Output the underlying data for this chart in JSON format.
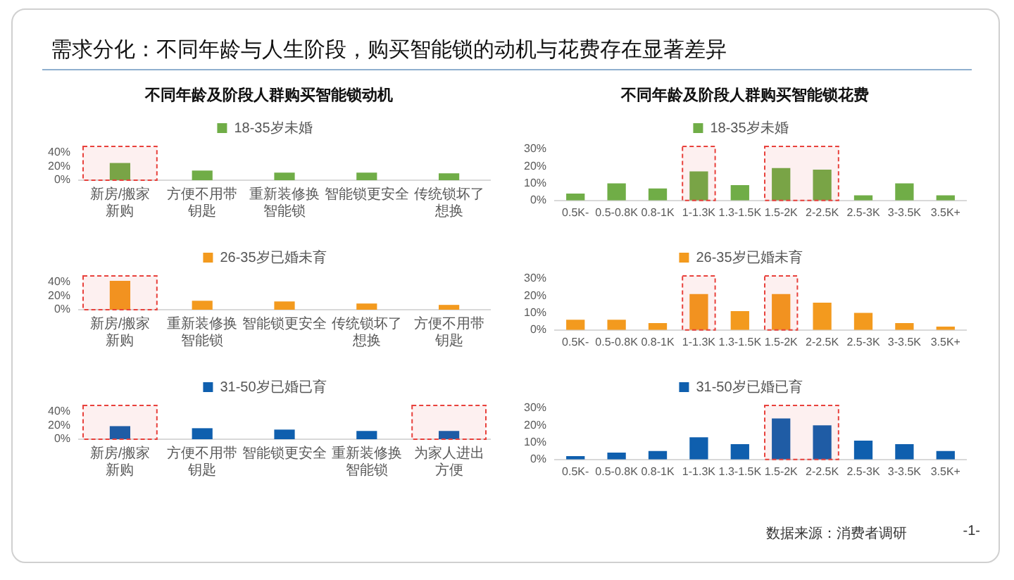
{
  "chart_data": [
    {
      "type": "bar",
      "title": "不同年龄及阶段人群购买智能锁动机",
      "annotations": [
        "需求分化：不同年龄与人生阶段，购买智能锁的动机与花费存在显著差异"
      ],
      "categories": [
        "新房/搬家新购",
        "方便不用带钥匙",
        "重新装修换智能锁",
        "智能锁更安全",
        "传统锁坏了想换"
      ],
      "series": [
        {
          "name": "18-35岁未婚",
          "color": "#70ad47",
          "values": [
            25,
            14,
            11,
            11,
            10
          ]
        }
      ],
      "ylim": [
        0,
        45
      ],
      "yticks": [
        {
          "value": 0,
          "label": "0%"
        },
        {
          "value": 20,
          "label": "20%"
        },
        {
          "value": 40,
          "label": "40%"
        }
      ],
      "legend": "top",
      "bands": [
        {
          "axis": "x",
          "from": "新房/搬家新购",
          "to": "新房/搬家新购",
          "color": "#e8413c"
        }
      ]
    },
    {
      "type": "bar",
      "categories": [
        "新房/搬家新购",
        "重新装修换智能锁",
        "智能锁更安全",
        "传统锁坏了想换",
        "方便不用带钥匙"
      ],
      "series": [
        {
          "name": "26-35岁已婚未育",
          "color": "#f39a1e",
          "values": [
            42,
            13,
            12,
            9,
            7
          ]
        }
      ],
      "ylim": [
        0,
        45
      ],
      "yticks": [
        {
          "value": 0,
          "label": "0%"
        },
        {
          "value": 20,
          "label": "20%"
        },
        {
          "value": 40,
          "label": "40%"
        }
      ],
      "legend": "top",
      "bands": [
        {
          "axis": "x",
          "from": "新房/搬家新购",
          "to": "新房/搬家新购",
          "color": "#e8413c"
        }
      ]
    },
    {
      "type": "bar",
      "categories": [
        "新房/搬家新购",
        "方便不用带钥匙",
        "智能锁更安全",
        "重新装修换智能锁",
        "为家人进出方便"
      ],
      "series": [
        {
          "name": "31-50岁已婚已育",
          "color": "#0f5fae",
          "values": [
            19,
            16,
            14,
            12,
            12
          ]
        }
      ],
      "ylim": [
        0,
        45
      ],
      "yticks": [
        {
          "value": 0,
          "label": "0%"
        },
        {
          "value": 20,
          "label": "20%"
        },
        {
          "value": 40,
          "label": "40%"
        }
      ],
      "legend": "top",
      "bands": [
        {
          "axis": "x",
          "from": "新房/搬家新购",
          "to": "新房/搬家新购",
          "color": "#e8413c"
        },
        {
          "axis": "x",
          "from": "为家人进出方便",
          "to": "为家人进出方便",
          "color": "#e8413c"
        }
      ]
    },
    {
      "type": "bar",
      "title": "不同年龄及阶段人群购买智能锁花费",
      "categories": [
        "0.5K-",
        "0.5-0.8K",
        "0.8-1K",
        "1-1.3K",
        "1.3-1.5K",
        "1.5-2K",
        "2-2.5K",
        "2.5-3K",
        "3-3.5K",
        "3.5K+"
      ],
      "series": [
        {
          "name": "18-35岁未婚",
          "color": "#70ad47",
          "values": [
            4,
            10,
            7,
            17,
            9,
            19,
            18,
            3,
            10,
            3
          ]
        }
      ],
      "ylim": [
        0,
        30
      ],
      "yticks": [
        {
          "value": 0,
          "label": "0%"
        },
        {
          "value": 10,
          "label": "10%"
        },
        {
          "value": 20,
          "label": "20%"
        },
        {
          "value": 30,
          "label": "30%"
        }
      ],
      "legend": "top",
      "bands": [
        {
          "axis": "x",
          "from": "1-1.3K",
          "to": "1-1.3K",
          "color": "#e8413c"
        },
        {
          "axis": "x",
          "from": "1.5-2K",
          "to": "2-2.5K",
          "color": "#e8413c"
        }
      ]
    },
    {
      "type": "bar",
      "categories": [
        "0.5K-",
        "0.5-0.8K",
        "0.8-1K",
        "1-1.3K",
        "1.3-1.5K",
        "1.5-2K",
        "2-2.5K",
        "2.5-3K",
        "3-3.5K",
        "3.5K+"
      ],
      "series": [
        {
          "name": "26-35岁已婚未育",
          "color": "#f39a1e",
          "values": [
            6,
            6,
            4,
            21,
            11,
            21,
            16,
            10,
            4,
            2
          ]
        }
      ],
      "ylim": [
        0,
        30
      ],
      "yticks": [
        {
          "value": 0,
          "label": "0%"
        },
        {
          "value": 10,
          "label": "10%"
        },
        {
          "value": 20,
          "label": "20%"
        },
        {
          "value": 30,
          "label": "30%"
        }
      ],
      "legend": "top",
      "bands": [
        {
          "axis": "x",
          "from": "1-1.3K",
          "to": "1-1.3K",
          "color": "#e8413c"
        },
        {
          "axis": "x",
          "from": "1.5-2K",
          "to": "1.5-2K",
          "color": "#e8413c"
        }
      ]
    },
    {
      "type": "bar",
      "annotations": [
        "数据来源：消费者调研",
        "-1-"
      ],
      "categories": [
        "0.5K-",
        "0.5-0.8K",
        "0.8-1K",
        "1-1.3K",
        "1.3-1.5K",
        "1.5-2K",
        "2-2.5K",
        "2.5-3K",
        "3-3.5K",
        "3.5K+"
      ],
      "series": [
        {
          "name": "31-50岁已婚已育",
          "color": "#0f5fae",
          "values": [
            2,
            4,
            5,
            13,
            9,
            24,
            20,
            11,
            9,
            5
          ]
        }
      ],
      "ylim": [
        0,
        30
      ],
      "yticks": [
        {
          "value": 0,
          "label": "0%"
        },
        {
          "value": 10,
          "label": "10%"
        },
        {
          "value": 20,
          "label": "20%"
        },
        {
          "value": 30,
          "label": "30%"
        }
      ],
      "legend": "top",
      "bands": [
        {
          "axis": "x",
          "from": "1.5-2K",
          "to": "2-2.5K",
          "color": "#e8413c"
        }
      ]
    }
  ]
}
